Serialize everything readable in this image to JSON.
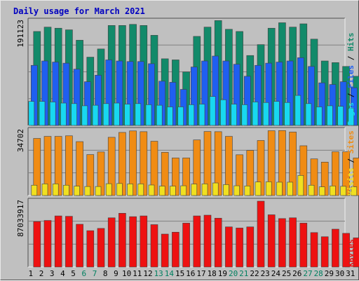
{
  "title": "Daily usage for March 2021",
  "colors": {
    "hits": "#128a6a",
    "files": "#1f5ff0",
    "pages": "#18d8f0",
    "visits": "#f0e020",
    "sites": "#f08c14",
    "kbytes": "#ee1111",
    "title": "#0000c0",
    "weekday": "#000000",
    "weekend": "#008060"
  },
  "chart_data": [
    {
      "type": "bar",
      "name": "hits-files-pages",
      "ymax_label": "191123",
      "ylim": [
        0,
        191123
      ],
      "legend": [
        {
          "text": "Hits",
          "color": "#128a6a"
        },
        {
          "text": "Files",
          "color": "#1f5ff0"
        },
        {
          "text": "Pages",
          "color": "#18d8f0"
        }
      ],
      "categories": [
        "1",
        "2",
        "3",
        "4",
        "5",
        "6",
        "7",
        "8",
        "9",
        "10",
        "11",
        "12",
        "13",
        "14",
        "15",
        "16",
        "17",
        "18",
        "19",
        "20",
        "21",
        "22",
        "23",
        "24",
        "25",
        "26",
        "27",
        "28",
        "29",
        "30",
        "31"
      ],
      "series": [
        {
          "name": "Hits",
          "values": [
            172000,
            180000,
            178000,
            175000,
            156000,
            125000,
            140000,
            183000,
            183000,
            185000,
            183000,
            165000,
            122000,
            120000,
            98000,
            163000,
            180000,
            192000,
            176000,
            172000,
            128000,
            148000,
            178000,
            188000,
            180000,
            186000,
            158000,
            118000,
            115000,
            108000,
            90000
          ]
        },
        {
          "name": "Files",
          "values": [
            110000,
            118000,
            116000,
            114000,
            103000,
            80000,
            92000,
            120000,
            118000,
            117000,
            117000,
            113000,
            81000,
            79000,
            66000,
            107000,
            118000,
            127000,
            118000,
            112000,
            90000,
            110000,
            114000,
            116000,
            118000,
            124000,
            108000,
            78000,
            75000,
            80000,
            69000
          ]
        },
        {
          "name": "Pages",
          "values": [
            44000,
            44000,
            43000,
            41000,
            40000,
            36000,
            37000,
            40000,
            41000,
            39000,
            40000,
            38000,
            37000,
            34000,
            34000,
            38000,
            39000,
            53000,
            47000,
            39000,
            38000,
            43000,
            42000,
            44000,
            42000,
            55000,
            40000,
            34000,
            36000,
            35000,
            31000
          ]
        }
      ]
    },
    {
      "type": "bar",
      "name": "sites-visits",
      "ymax_label": "34702",
      "ylim": [
        0,
        34702
      ],
      "legend": [
        {
          "text": "Sites",
          "color": "#f08c14"
        },
        {
          "text": "Visits",
          "color": "#f0e020"
        }
      ],
      "categories": [
        "1",
        "2",
        "3",
        "4",
        "5",
        "6",
        "7",
        "8",
        "9",
        "10",
        "11",
        "12",
        "13",
        "14",
        "15",
        "16",
        "17",
        "18",
        "19",
        "20",
        "21",
        "22",
        "23",
        "24",
        "25",
        "26",
        "27",
        "28",
        "29",
        "30",
        "31"
      ],
      "series": [
        {
          "name": "Sites",
          "values": [
            30400,
            31500,
            31500,
            31800,
            28700,
            21800,
            23200,
            31000,
            33600,
            34400,
            34000,
            28900,
            23000,
            20000,
            20000,
            29600,
            34100,
            34000,
            31500,
            21700,
            24000,
            29300,
            34500,
            34600,
            33800,
            26500,
            19500,
            17800,
            23300,
            23300,
            20000
          ]
        },
        {
          "name": "Visits",
          "values": [
            5500,
            6200,
            6200,
            5500,
            5000,
            4800,
            4800,
            6300,
            6400,
            6200,
            6200,
            5600,
            5000,
            5000,
            5200,
            6100,
            6200,
            6700,
            5800,
            5200,
            5100,
            7200,
            7300,
            7100,
            7100,
            10700,
            5500,
            4600,
            5100,
            4900,
            4600
          ]
        }
      ]
    },
    {
      "type": "bar",
      "name": "kbytes",
      "ymax_label": "87033917",
      "ylim": [
        0,
        87033917
      ],
      "legend": [
        {
          "text": "KBytes",
          "color": "#ee1111"
        }
      ],
      "categories": [
        "1",
        "2",
        "3",
        "4",
        "5",
        "6",
        "7",
        "8",
        "9",
        "10",
        "11",
        "12",
        "13",
        "14",
        "15",
        "16",
        "17",
        "18",
        "19",
        "20",
        "21",
        "22",
        "23",
        "24",
        "25",
        "26",
        "27",
        "28",
        "29",
        "30",
        "31"
      ],
      "series": [
        {
          "name": "KBytes",
          "values": [
            60000000,
            61500000,
            67500000,
            67000000,
            56500000,
            48000000,
            51000000,
            65000000,
            71000000,
            66500000,
            67500000,
            56000000,
            43500000,
            46000000,
            58000000,
            67500000,
            68500000,
            64500000,
            53000000,
            51500000,
            53000000,
            87000000,
            69000000,
            64000000,
            65000000,
            58000000,
            45500000,
            40000000,
            50000000,
            44500000,
            38500000
          ]
        }
      ]
    }
  ],
  "weekend_days": [
    6,
    7,
    13,
    14,
    20,
    21,
    27,
    28
  ]
}
